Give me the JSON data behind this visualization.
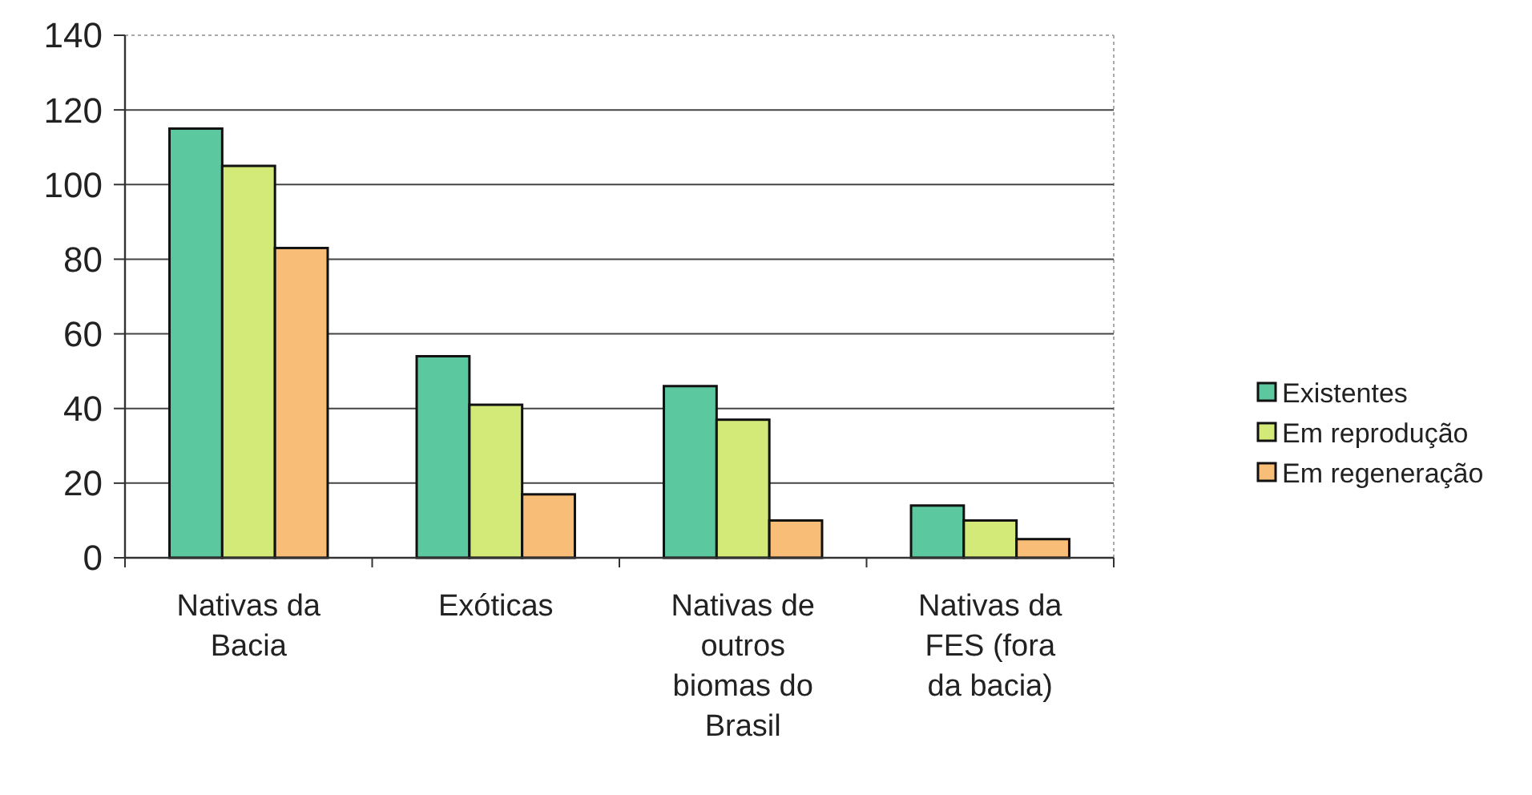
{
  "chart_data": {
    "type": "bar",
    "categories": [
      "Nativas da Bacia",
      "Exóticas",
      "Nativas de outros biomas do Brasil",
      "Nativas da FES (fora da bacia)"
    ],
    "series": [
      {
        "name": "Existentes",
        "color": "#5cc8a0",
        "values": [
          115,
          54,
          46,
          14
        ]
      },
      {
        "name": "Em reprodução",
        "color": "#d4ea78",
        "values": [
          105,
          41,
          37,
          10
        ]
      },
      {
        "name": "Em regeneração",
        "color": "#f8be78",
        "values": [
          83,
          17,
          10,
          5
        ]
      }
    ],
    "ylim": [
      0,
      140
    ],
    "yticks": [
      0,
      20,
      40,
      60,
      80,
      100,
      120,
      140
    ],
    "grid": "y",
    "legend": "right"
  }
}
